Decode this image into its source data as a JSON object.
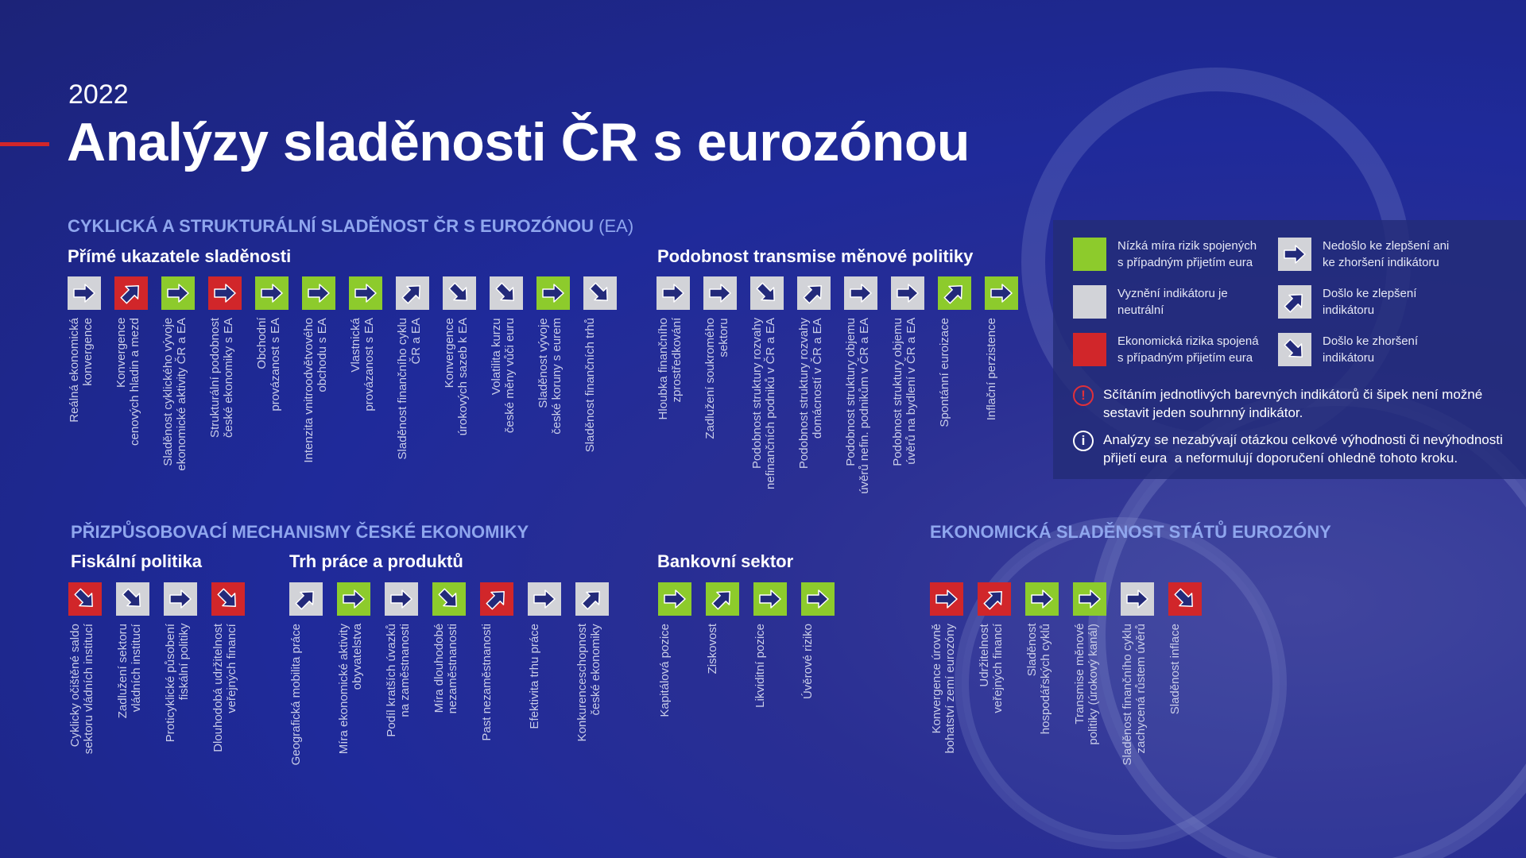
{
  "colors": {
    "green": "#8dcb2c",
    "gray": "#d2d3d8",
    "red": "#d1262a",
    "arrow": "#232a7a"
  },
  "year": "2022",
  "title": "Analýzy sladěnosti ČR s eurozónou",
  "sections": {
    "cyclical": {
      "title": "CYKLICKÁ A STRUKTURÁLNÍ SLADĚNOST ČR S EUROZÓNOU",
      "suffix": "(EA)"
    },
    "adjust": {
      "title": "PŘIZPŮSOBOVACÍ MECHANISMY ČESKÉ EKONOMIKY"
    },
    "ezone": {
      "title": "EKONOMICKÁ SLADĚNOST STÁTŮ EUROZÓNY"
    }
  },
  "groups": [
    {
      "id": "prime",
      "title": "Přímé ukazatele sladěnosti",
      "items": [
        {
          "color": "gray",
          "arrow": "right",
          "label": "Reálná ekonomická\nkonvergence"
        },
        {
          "color": "red",
          "arrow": "up",
          "label": "Konvergence\ncenových hladin a mezd"
        },
        {
          "color": "green",
          "arrow": "right",
          "label": "Sladěnost cyklického vývoje\nekonomické aktivity ČR a EA"
        },
        {
          "color": "red",
          "arrow": "right",
          "label": "Strukturální podobnost\nčeské ekonomiky s EA"
        },
        {
          "color": "green",
          "arrow": "right",
          "label": "Obchodní\nprovázanost s EA"
        },
        {
          "color": "green",
          "arrow": "right",
          "label": "Intenzita vnitroodvětvového\nobchodu s EA"
        },
        {
          "color": "green",
          "arrow": "right",
          "label": "Vlastnická\nprovázanost s EA"
        },
        {
          "color": "gray",
          "arrow": "up",
          "label": "Sladěnost finančního cyklu\nČR a EA"
        },
        {
          "color": "gray",
          "arrow": "down",
          "label": "Konvergence\núrokových sazeb k EA"
        },
        {
          "color": "gray",
          "arrow": "down",
          "label": "Volatilita kurzu\nčeské měny vůči euru"
        },
        {
          "color": "green",
          "arrow": "right",
          "label": "Sladěnost vývoje\nčeské koruny s eurem"
        },
        {
          "color": "gray",
          "arrow": "down",
          "label": "Sladěnost finančních trhů"
        }
      ]
    },
    {
      "id": "transmise",
      "title": "Podobnost transmise měnové politiky",
      "items": [
        {
          "color": "gray",
          "arrow": "right",
          "label": "Hloubka finančního\nzprostředkování"
        },
        {
          "color": "gray",
          "arrow": "right",
          "label": "Zadlužení soukromého\nsektoru"
        },
        {
          "color": "gray",
          "arrow": "down",
          "label": "Podobnost struktury rozvahy\nnefinančních podniků v ČR a EA"
        },
        {
          "color": "gray",
          "arrow": "up",
          "label": "Podobnost struktury rozvahy\ndomácností v ČR a EA"
        },
        {
          "color": "gray",
          "arrow": "right",
          "label": "Podobnost struktury objemu\núvěrů nefin. podnikům v ČR a EA"
        },
        {
          "color": "gray",
          "arrow": "right",
          "label": "Podobnost struktury objemu\núvěrů na bydlení v ČR a EA"
        },
        {
          "color": "green",
          "arrow": "up",
          "label": "Spontánní euroizace"
        },
        {
          "color": "green",
          "arrow": "right",
          "label": "Inflační perzistence"
        }
      ]
    },
    {
      "id": "fiskal",
      "title": "Fiskální politika",
      "items": [
        {
          "color": "red",
          "arrow": "down",
          "label": "Cyklicky očištěné saldo\nsektoru vládních institucí"
        },
        {
          "color": "gray",
          "arrow": "down",
          "label": "Zadlužení sektoru\nvládních institucí"
        },
        {
          "color": "gray",
          "arrow": "right",
          "label": "Proticyklické působení\nfiskální politiky"
        },
        {
          "color": "red",
          "arrow": "down",
          "label": "Dlouhodobá udržitelnost\nveřejných financí"
        }
      ]
    },
    {
      "id": "trh",
      "title": "Trh práce a produktů",
      "items": [
        {
          "color": "gray",
          "arrow": "up",
          "label": "Geografická mobilita práce"
        },
        {
          "color": "green",
          "arrow": "right",
          "label": "Míra ekonomické aktivity\nobyvatelstva"
        },
        {
          "color": "gray",
          "arrow": "right",
          "label": "Podíl kratších úvazků\nna zaměstnanosti"
        },
        {
          "color": "green",
          "arrow": "down",
          "label": "Míra dlouhodobé\nnezaměstnanosti"
        },
        {
          "color": "red",
          "arrow": "up",
          "label": "Past nezaměstnanosti"
        },
        {
          "color": "gray",
          "arrow": "right",
          "label": "Efektivita trhu práce"
        },
        {
          "color": "gray",
          "arrow": "up",
          "label": "Konkurenceschopnost\nčeské ekonomiky"
        }
      ]
    },
    {
      "id": "bank",
      "title": "Bankovní sektor",
      "items": [
        {
          "color": "green",
          "arrow": "right",
          "label": "Kapitálová pozice"
        },
        {
          "color": "green",
          "arrow": "up",
          "label": "Ziskovost"
        },
        {
          "color": "green",
          "arrow": "right",
          "label": "Likviditní pozice"
        },
        {
          "color": "green",
          "arrow": "right",
          "label": "Úvěrové riziko"
        }
      ]
    },
    {
      "id": "ez",
      "title": "",
      "items": [
        {
          "color": "red",
          "arrow": "right",
          "label": "Konvergence úrovně\nbohatství zemí eurozóny"
        },
        {
          "color": "red",
          "arrow": "up",
          "label": "Udržitelnost\nveřejných financí"
        },
        {
          "color": "green",
          "arrow": "right",
          "label": "Sladěnost\nhospodářských cyklů"
        },
        {
          "color": "green",
          "arrow": "right",
          "label": "Transmise měnové\npolitiky (úrokový kanál)"
        },
        {
          "color": "gray",
          "arrow": "right",
          "label": "Sladěnost finančního cyklu\nzachycená růstem úvěrů"
        },
        {
          "color": "red",
          "arrow": "down",
          "label": "Sladěnost inflace"
        }
      ]
    }
  ],
  "legend": {
    "colors": [
      {
        "color": "green",
        "text": "Nízká míra rizik spojených\ns případným přijetím eura"
      },
      {
        "color": "gray",
        "text": "Vyznění indikátoru je\nneutrální"
      },
      {
        "color": "red",
        "text": "Ekonomická rizika spojená\ns případným přijetím eura"
      }
    ],
    "arrows": [
      {
        "arrow": "right",
        "text": "Nedošlo ke zlepšení ani\nke zhoršení indikátoru"
      },
      {
        "arrow": "up",
        "text": "Došlo ke zlepšení\nindikátoru"
      },
      {
        "arrow": "down",
        "text": "Došlo ke zhoršení\nindikátoru"
      }
    ],
    "notes": [
      {
        "icon": "warning-icon",
        "text": "Sčítáním jednotlivých barevných indikátorů či šipek není možné\nsestavit jeden souhrnný indikátor."
      },
      {
        "icon": "info-icon",
        "text": "Analýzy se nezabývají otázkou celkové výhodnosti či nevýhodnosti\npřijetí eura  a neformulují doporučení ohledně tohoto kroku."
      }
    ]
  }
}
